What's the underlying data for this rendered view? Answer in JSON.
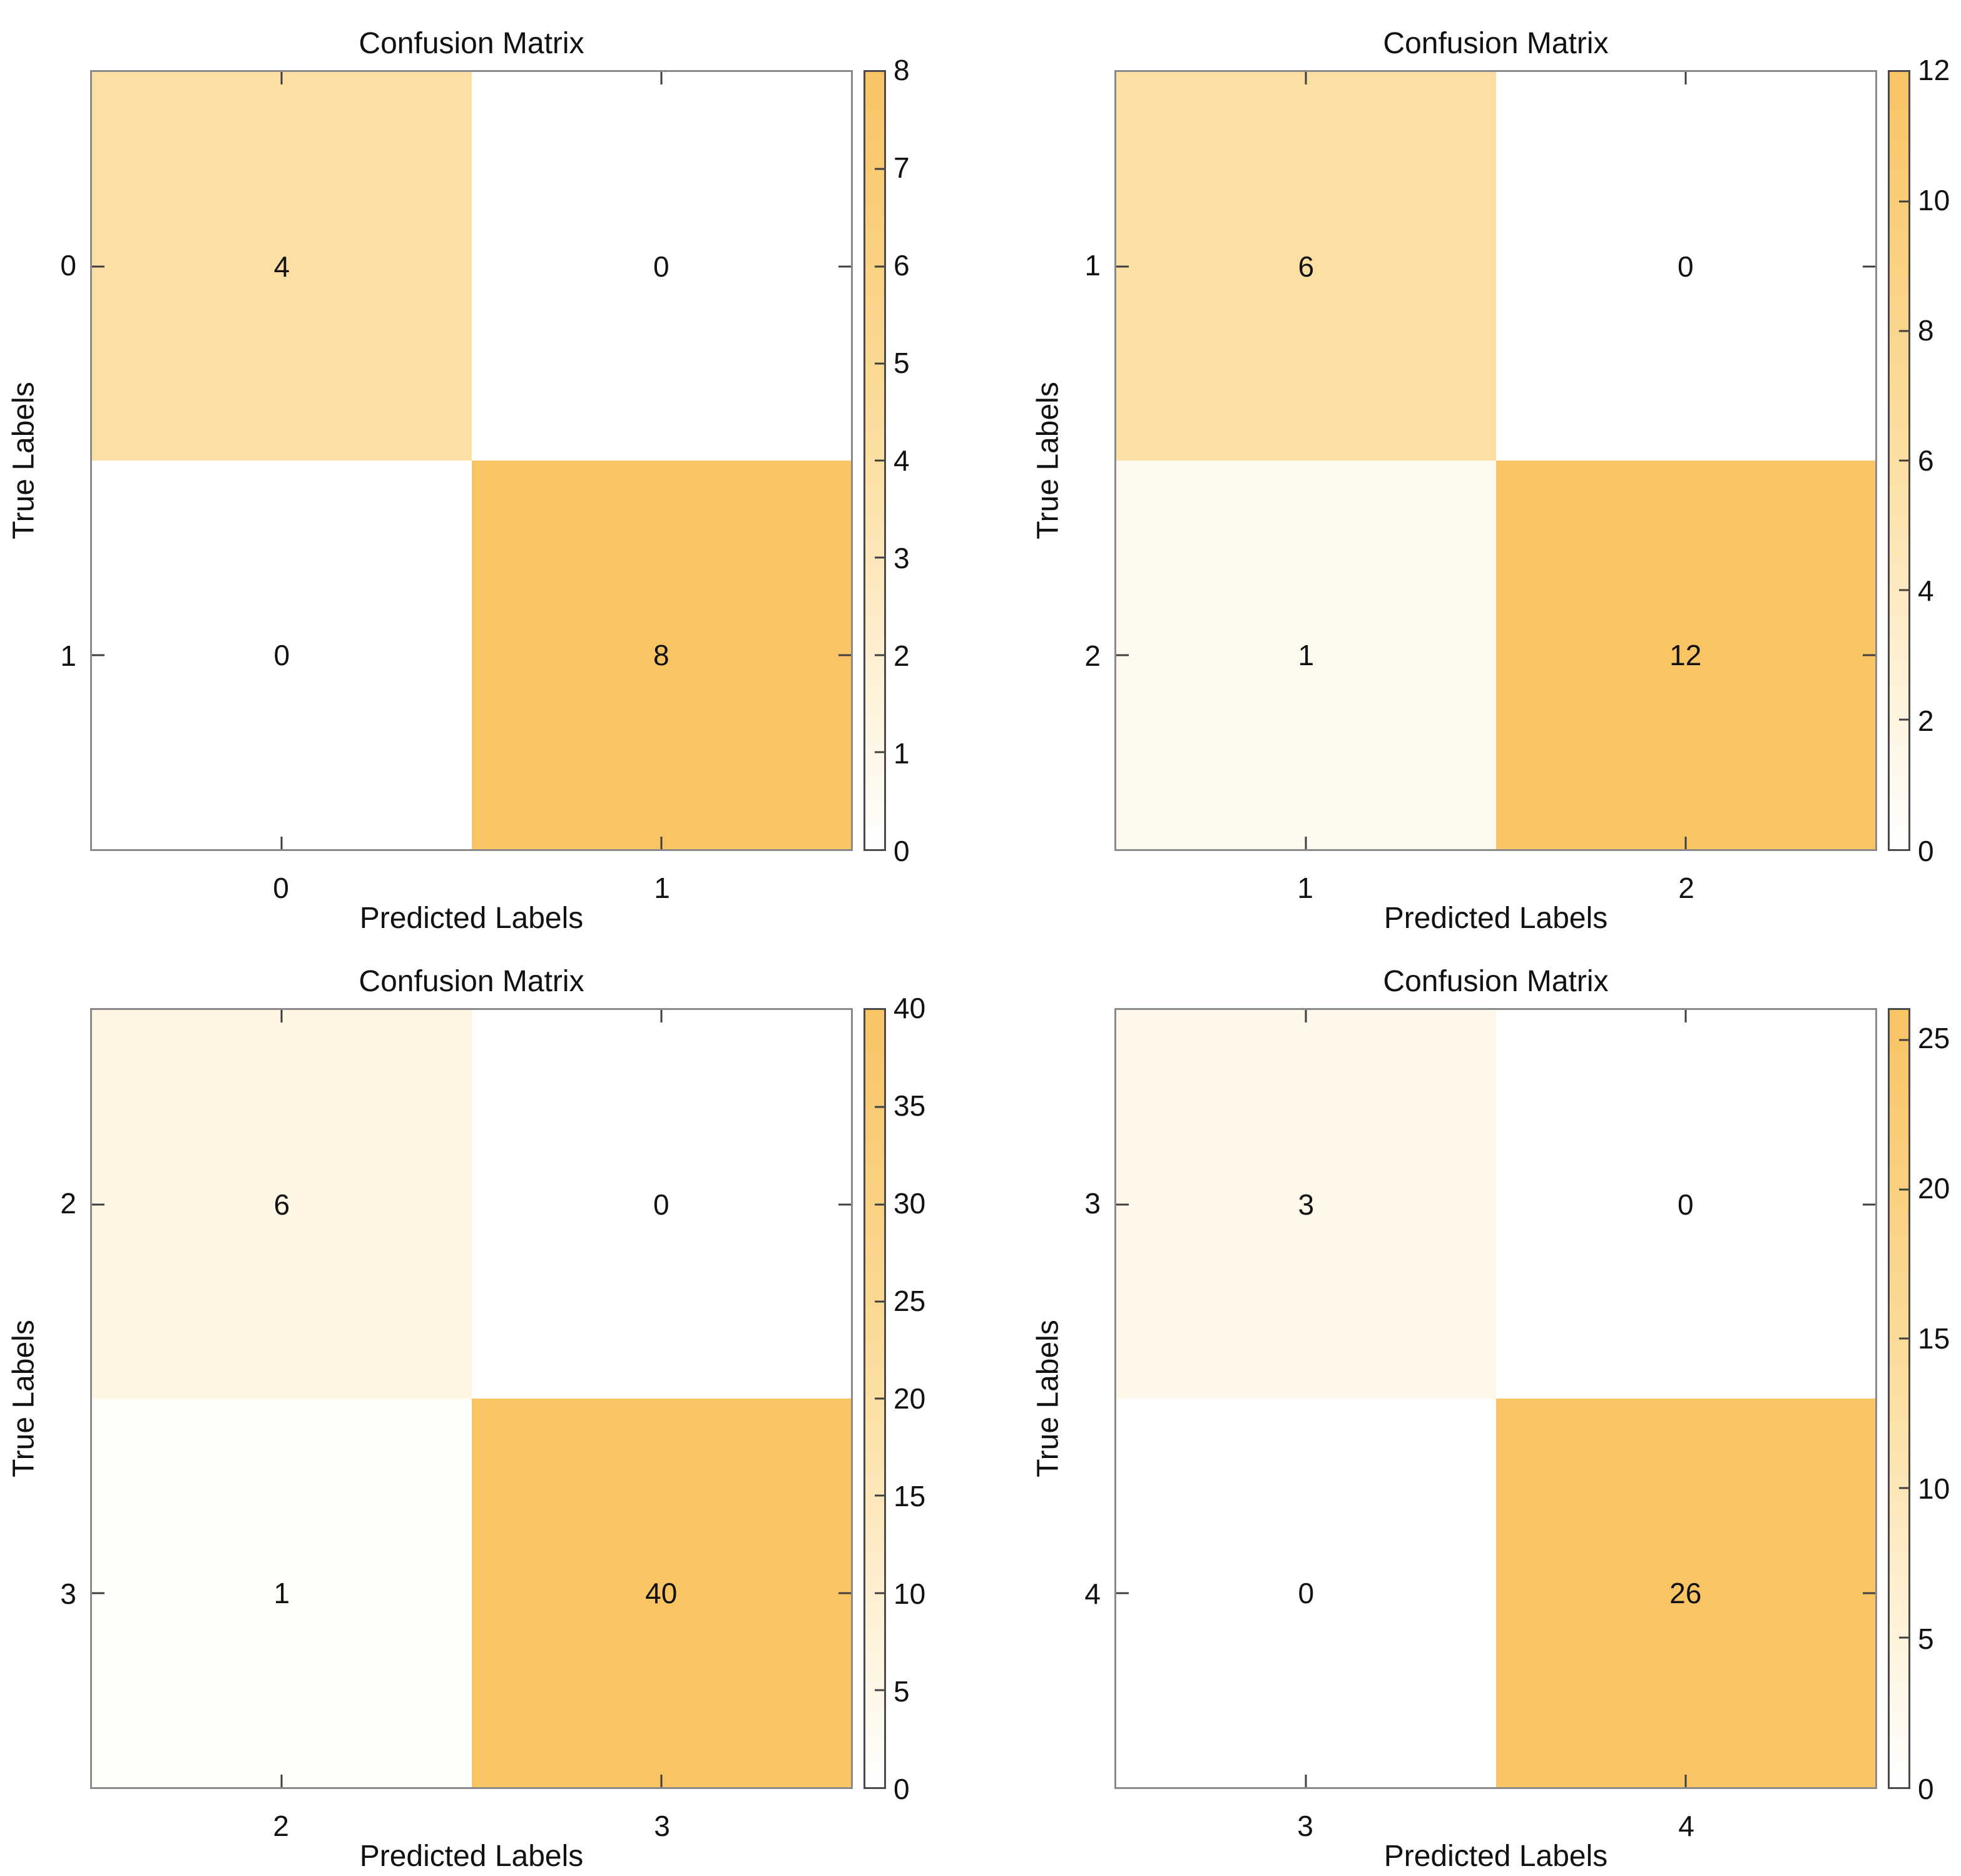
{
  "page": {
    "background": "#FFFFFF"
  },
  "colors": {
    "cmap_min": "#FFFFFF",
    "cmap_mid": "#FCDFA2",
    "cmap_max": "#F8C464",
    "axes_border": "#8A8A8A",
    "colorbar_border": "#4A4A4A",
    "tick_mark": "#3F3F3F",
    "text": "#111111"
  },
  "chart_data": [
    {
      "type": "heatmap",
      "title": "Confusion Matrix",
      "xlabel": "Predicted Labels",
      "ylabel": "True Labels",
      "x_ticks": [
        "0",
        "1"
      ],
      "y_ticks": [
        "0",
        "1"
      ],
      "matrix": [
        [
          4,
          0
        ],
        [
          0,
          8
        ]
      ],
      "vmin": 0,
      "vmax": 8,
      "colorbar_ticks": [
        0,
        1,
        2,
        3,
        4,
        5,
        6,
        7,
        8
      ],
      "colormap": "white-to-orange",
      "legend_position": "right-colorbar",
      "grid": false
    },
    {
      "type": "heatmap",
      "title": "Confusion Matrix",
      "xlabel": "Predicted Labels",
      "ylabel": "True Labels",
      "x_ticks": [
        "1",
        "2"
      ],
      "y_ticks": [
        "1",
        "2"
      ],
      "matrix": [
        [
          6,
          0
        ],
        [
          1,
          12
        ]
      ],
      "vmin": 0,
      "vmax": 12,
      "colorbar_ticks": [
        0,
        2,
        4,
        6,
        8,
        10,
        12
      ],
      "colormap": "white-to-orange",
      "legend_position": "right-colorbar",
      "grid": false
    },
    {
      "type": "heatmap",
      "title": "Confusion Matrix",
      "xlabel": "Predicted Labels",
      "ylabel": "True Labels",
      "x_ticks": [
        "2",
        "3"
      ],
      "y_ticks": [
        "2",
        "3"
      ],
      "matrix": [
        [
          6,
          0
        ],
        [
          1,
          40
        ]
      ],
      "vmin": 0,
      "vmax": 40,
      "colorbar_ticks": [
        0,
        5,
        10,
        15,
        20,
        25,
        30,
        35,
        40
      ],
      "colormap": "white-to-orange",
      "legend_position": "right-colorbar",
      "grid": false
    },
    {
      "type": "heatmap",
      "title": "Confusion Matrix",
      "xlabel": "Predicted Labels",
      "ylabel": "True Labels",
      "x_ticks": [
        "3",
        "4"
      ],
      "y_ticks": [
        "3",
        "4"
      ],
      "matrix": [
        [
          3,
          0
        ],
        [
          0,
          26
        ]
      ],
      "vmin": 0,
      "vmax": 26,
      "colorbar_ticks": [
        0,
        5,
        10,
        15,
        20,
        25
      ],
      "colormap": "white-to-orange",
      "legend_position": "right-colorbar",
      "grid": false
    }
  ]
}
